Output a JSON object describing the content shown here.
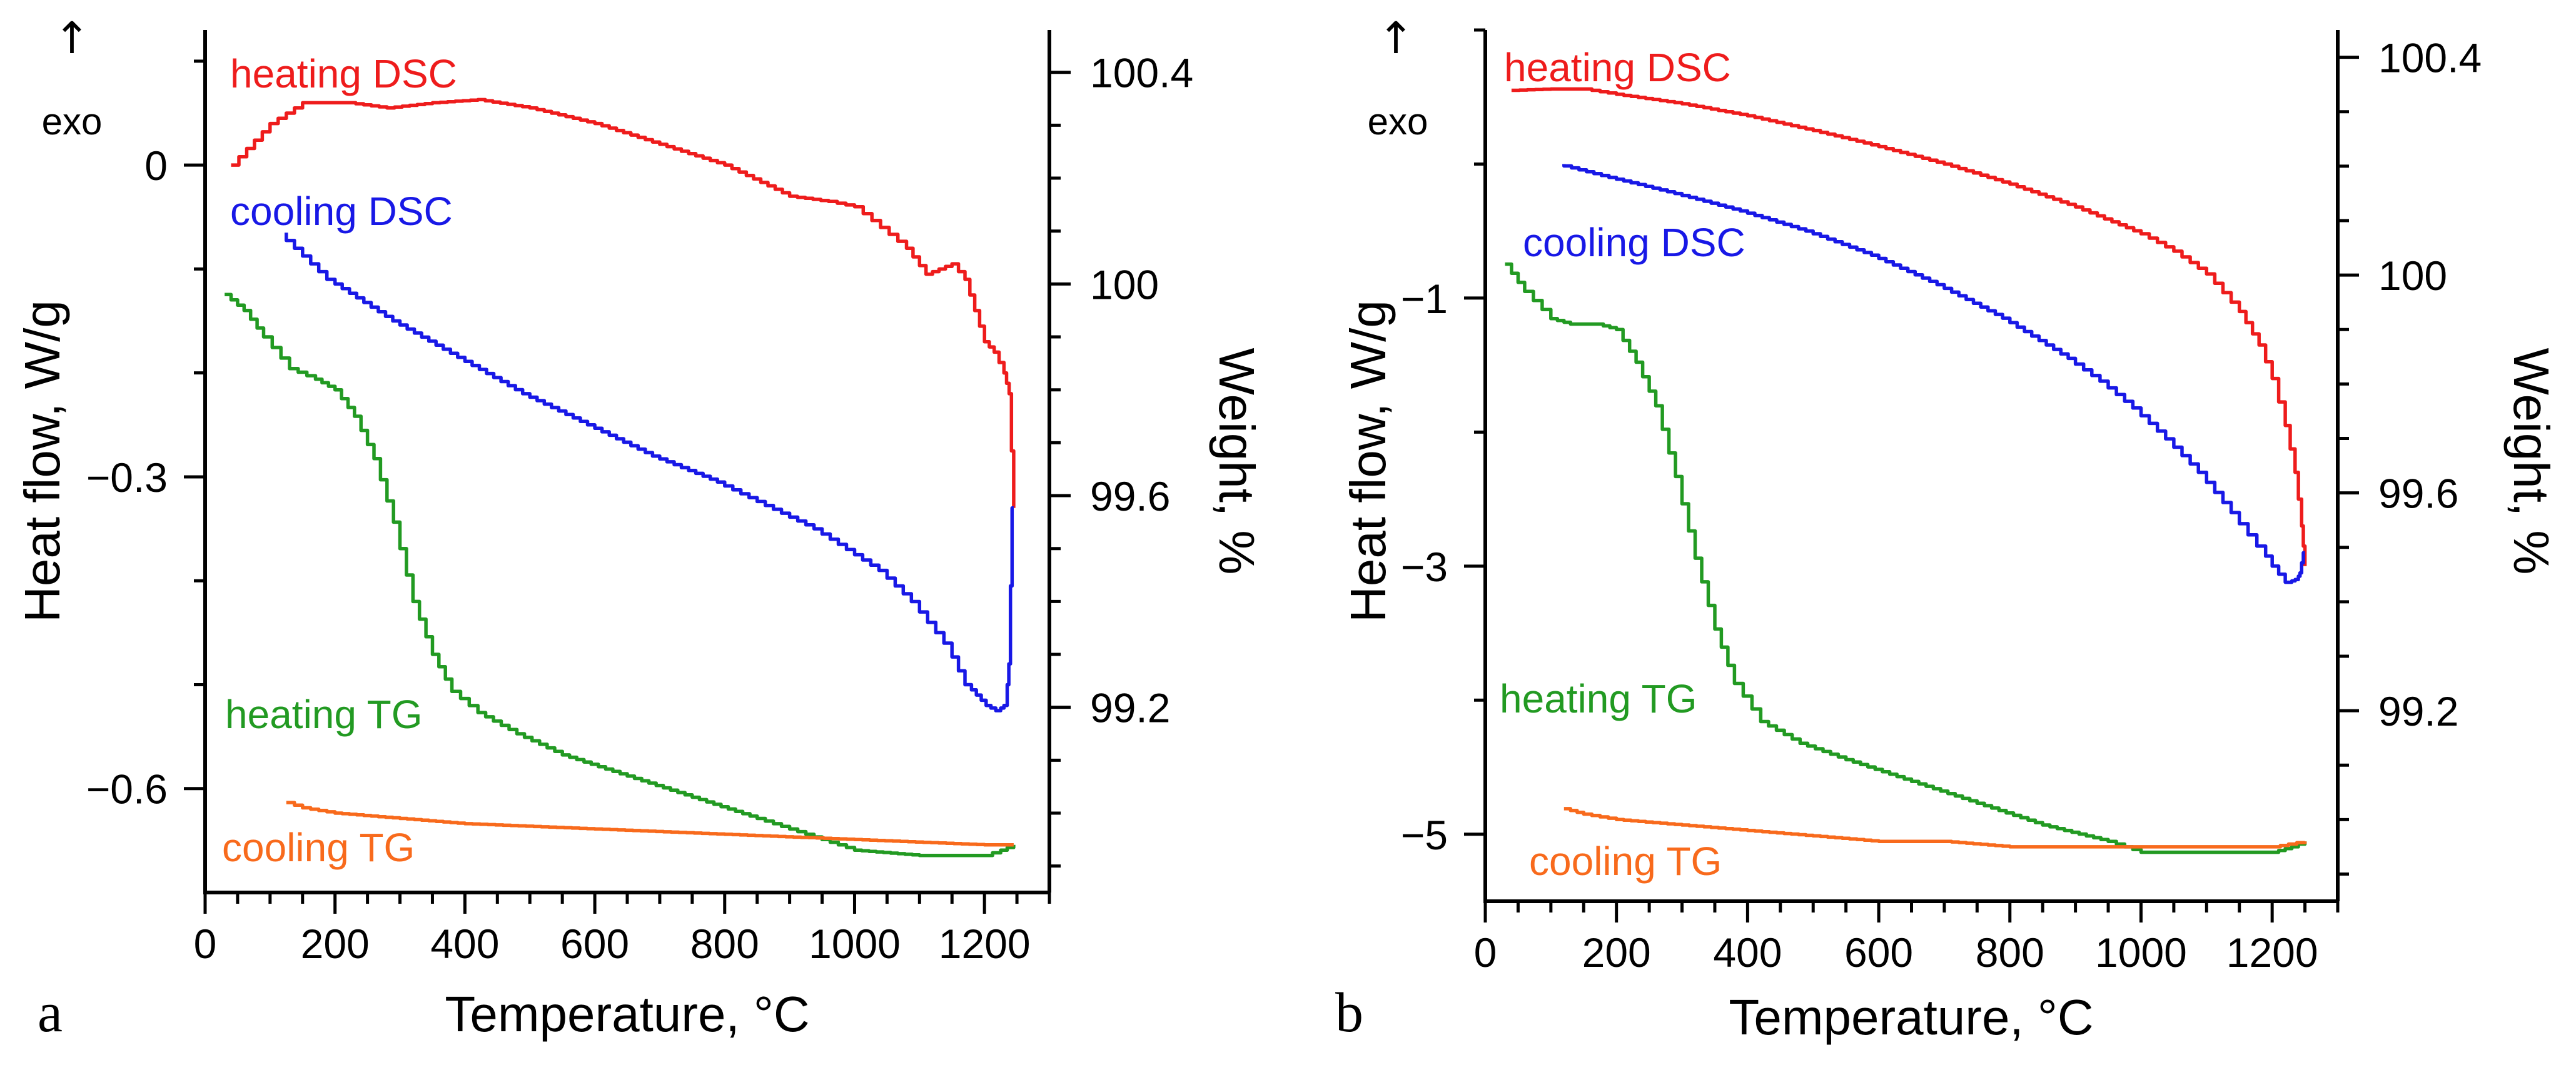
{
  "chart_data": [
    {
      "panel_label": "a",
      "type": "line",
      "xlabel": "Temperature, °C",
      "ylabel": "Heat flow, W/g",
      "y2label": "Weight, %",
      "exo_label": "exo",
      "xlim": [
        0,
        1300
      ],
      "ylim": [
        -0.7,
        0.13
      ],
      "y2lim": [
        98.85,
        100.48
      ],
      "xticks": [
        0,
        200,
        400,
        600,
        800,
        1000,
        1200
      ],
      "yticks": [
        0,
        -0.3,
        -0.6
      ],
      "ytick_labels": [
        "0",
        "−0.3",
        "−0.6"
      ],
      "y2ticks": [
        100.4,
        100,
        99.6,
        99.2
      ],
      "y2tick_labels": [
        "100.4",
        "100",
        "99.6",
        "99.2"
      ],
      "series": [
        {
          "name": "heating DSC",
          "axis": "left",
          "color": "#ee1c1c",
          "x": [
            40,
            100,
            150,
            220,
            280,
            350,
            420,
            500,
            600,
            700,
            800,
            900,
            960,
            1000,
            1040,
            1080,
            1110,
            1130,
            1150,
            1170,
            1185,
            1200,
            1215,
            1230,
            1238,
            1245
          ],
          "y": [
            0.0,
            0.04,
            0.06,
            0.06,
            0.055,
            0.06,
            0.063,
            0.055,
            0.04,
            0.02,
            0.0,
            -0.03,
            -0.035,
            -0.04,
            -0.06,
            -0.08,
            -0.105,
            -0.1,
            -0.095,
            -0.11,
            -0.14,
            -0.17,
            -0.18,
            -0.2,
            -0.22,
            -0.33
          ]
        },
        {
          "name": "cooling DSC",
          "axis": "left",
          "color": "#1818e6",
          "x": [
            1245,
            1240,
            1235,
            1225,
            1210,
            1195,
            1180,
            1150,
            1100,
            1050,
            1000,
            950,
            900,
            850,
            800,
            700,
            600,
            500,
            400,
            300,
            200,
            125
          ],
          "y": [
            -0.33,
            -0.48,
            -0.52,
            -0.525,
            -0.52,
            -0.51,
            -0.5,
            -0.46,
            -0.42,
            -0.39,
            -0.37,
            -0.35,
            -0.335,
            -0.32,
            -0.305,
            -0.28,
            -0.25,
            -0.22,
            -0.185,
            -0.15,
            -0.11,
            -0.065
          ]
        },
        {
          "name": "heating TG",
          "axis": "right",
          "color": "#229a22",
          "x": [
            30,
            60,
            90,
            130,
            170,
            200,
            230,
            260,
            290,
            320,
            350,
            380,
            420,
            480,
            550,
            650,
            750,
            850,
            900,
            950,
            1000,
            1100,
            1150,
            1200,
            1225,
            1245
          ],
          "y": [
            99.98,
            99.95,
            99.9,
            99.84,
            99.82,
            99.8,
            99.75,
            99.67,
            99.55,
            99.4,
            99.3,
            99.23,
            99.19,
            99.15,
            99.11,
            99.07,
            99.03,
            98.99,
            98.97,
            98.95,
            98.93,
            98.92,
            98.92,
            98.92,
            98.93,
            98.94
          ]
        },
        {
          "name": "cooling TG",
          "axis": "right",
          "color": "#f86a1c",
          "x": [
            125,
            150,
            200,
            300,
            400,
            600,
            800,
            1000,
            1200,
            1245
          ],
          "y": [
            99.02,
            99.01,
            99.0,
            98.99,
            98.98,
            98.97,
            98.96,
            98.95,
            98.94,
            98.94
          ]
        }
      ],
      "labels": [
        {
          "text": "heating DSC",
          "series": "heating DSC"
        },
        {
          "text": "cooling DSC",
          "series": "cooling DSC"
        },
        {
          "text": "heating TG",
          "series": "heating TG"
        },
        {
          "text": "cooling TG",
          "series": "cooling TG"
        }
      ]
    },
    {
      "panel_label": "b",
      "type": "line",
      "xlabel": "Temperature, °C",
      "ylabel": "Heat flow, W/g",
      "y2label": "Weight, %",
      "exo_label": "exo",
      "xlim": [
        0,
        1300
      ],
      "ylim": [
        -5.5,
        1.0
      ],
      "y2lim": [
        98.85,
        100.45
      ],
      "xticks": [
        0,
        200,
        400,
        600,
        800,
        1000,
        1200
      ],
      "yticks": [
        -1,
        -3,
        -5
      ],
      "ytick_labels": [
        "−1",
        "−3",
        "−5"
      ],
      "y2ticks": [
        100.4,
        100,
        99.6,
        99.2
      ],
      "y2tick_labels": [
        "100.4",
        "100",
        "99.6",
        "99.2"
      ],
      "series": [
        {
          "name": "heating DSC",
          "axis": "left",
          "color": "#ee1c1c",
          "x": [
            40,
            100,
            150,
            200,
            300,
            400,
            500,
            600,
            700,
            800,
            900,
            1000,
            1050,
            1100,
            1150,
            1180,
            1200,
            1220,
            1235,
            1245,
            1250
          ],
          "y": [
            0.55,
            0.56,
            0.56,
            0.52,
            0.45,
            0.36,
            0.25,
            0.13,
            0.0,
            -0.15,
            -0.32,
            -0.52,
            -0.65,
            -0.82,
            -1.1,
            -1.35,
            -1.6,
            -1.95,
            -2.3,
            -2.7,
            -3.0
          ]
        },
        {
          "name": "cooling DSC",
          "axis": "left",
          "color": "#1818e6",
          "x": [
            1250,
            1245,
            1240,
            1230,
            1210,
            1190,
            1150,
            1100,
            1050,
            1000,
            950,
            900,
            800,
            700,
            600,
            500,
            400,
            300,
            200,
            120
          ],
          "y": [
            -2.9,
            -3.05,
            -3.1,
            -3.12,
            -3.0,
            -2.85,
            -2.6,
            -2.3,
            -2.05,
            -1.82,
            -1.62,
            -1.45,
            -1.15,
            -0.9,
            -0.68,
            -0.5,
            -0.35,
            -0.22,
            -0.1,
            0.0
          ]
        },
        {
          "name": "heating TG",
          "axis": "right",
          "color": "#229a22",
          "x": [
            30,
            60,
            100,
            130,
            170,
            200,
            230,
            260,
            290,
            320,
            350,
            380,
            420,
            480,
            550,
            650,
            750,
            850,
            950,
            1000,
            1050,
            1150,
            1200,
            1230,
            1250
          ],
          "y": [
            100.02,
            99.97,
            99.92,
            99.91,
            99.91,
            99.9,
            99.84,
            99.76,
            99.63,
            99.48,
            99.35,
            99.25,
            99.18,
            99.14,
            99.11,
            99.07,
            99.03,
            98.99,
            98.96,
            98.94,
            98.94,
            98.94,
            98.94,
            98.95,
            98.96
          ]
        },
        {
          "name": "cooling TG",
          "axis": "right",
          "color": "#f86a1c",
          "x": [
            120,
            150,
            200,
            300,
            400,
            500,
            600,
            700,
            800,
            900,
            1000,
            1100,
            1200,
            1250
          ],
          "y": [
            99.02,
            99.01,
            99.0,
            98.99,
            98.98,
            98.97,
            98.96,
            98.96,
            98.95,
            98.95,
            98.95,
            98.95,
            98.95,
            98.96
          ]
        }
      ],
      "labels": [
        {
          "text": "heating DSC",
          "series": "heating DSC"
        },
        {
          "text": "cooling DSC",
          "series": "cooling DSC"
        },
        {
          "text": "heating TG",
          "series": "heating TG"
        },
        {
          "text": "cooling TG",
          "series": "cooling TG"
        }
      ]
    }
  ]
}
